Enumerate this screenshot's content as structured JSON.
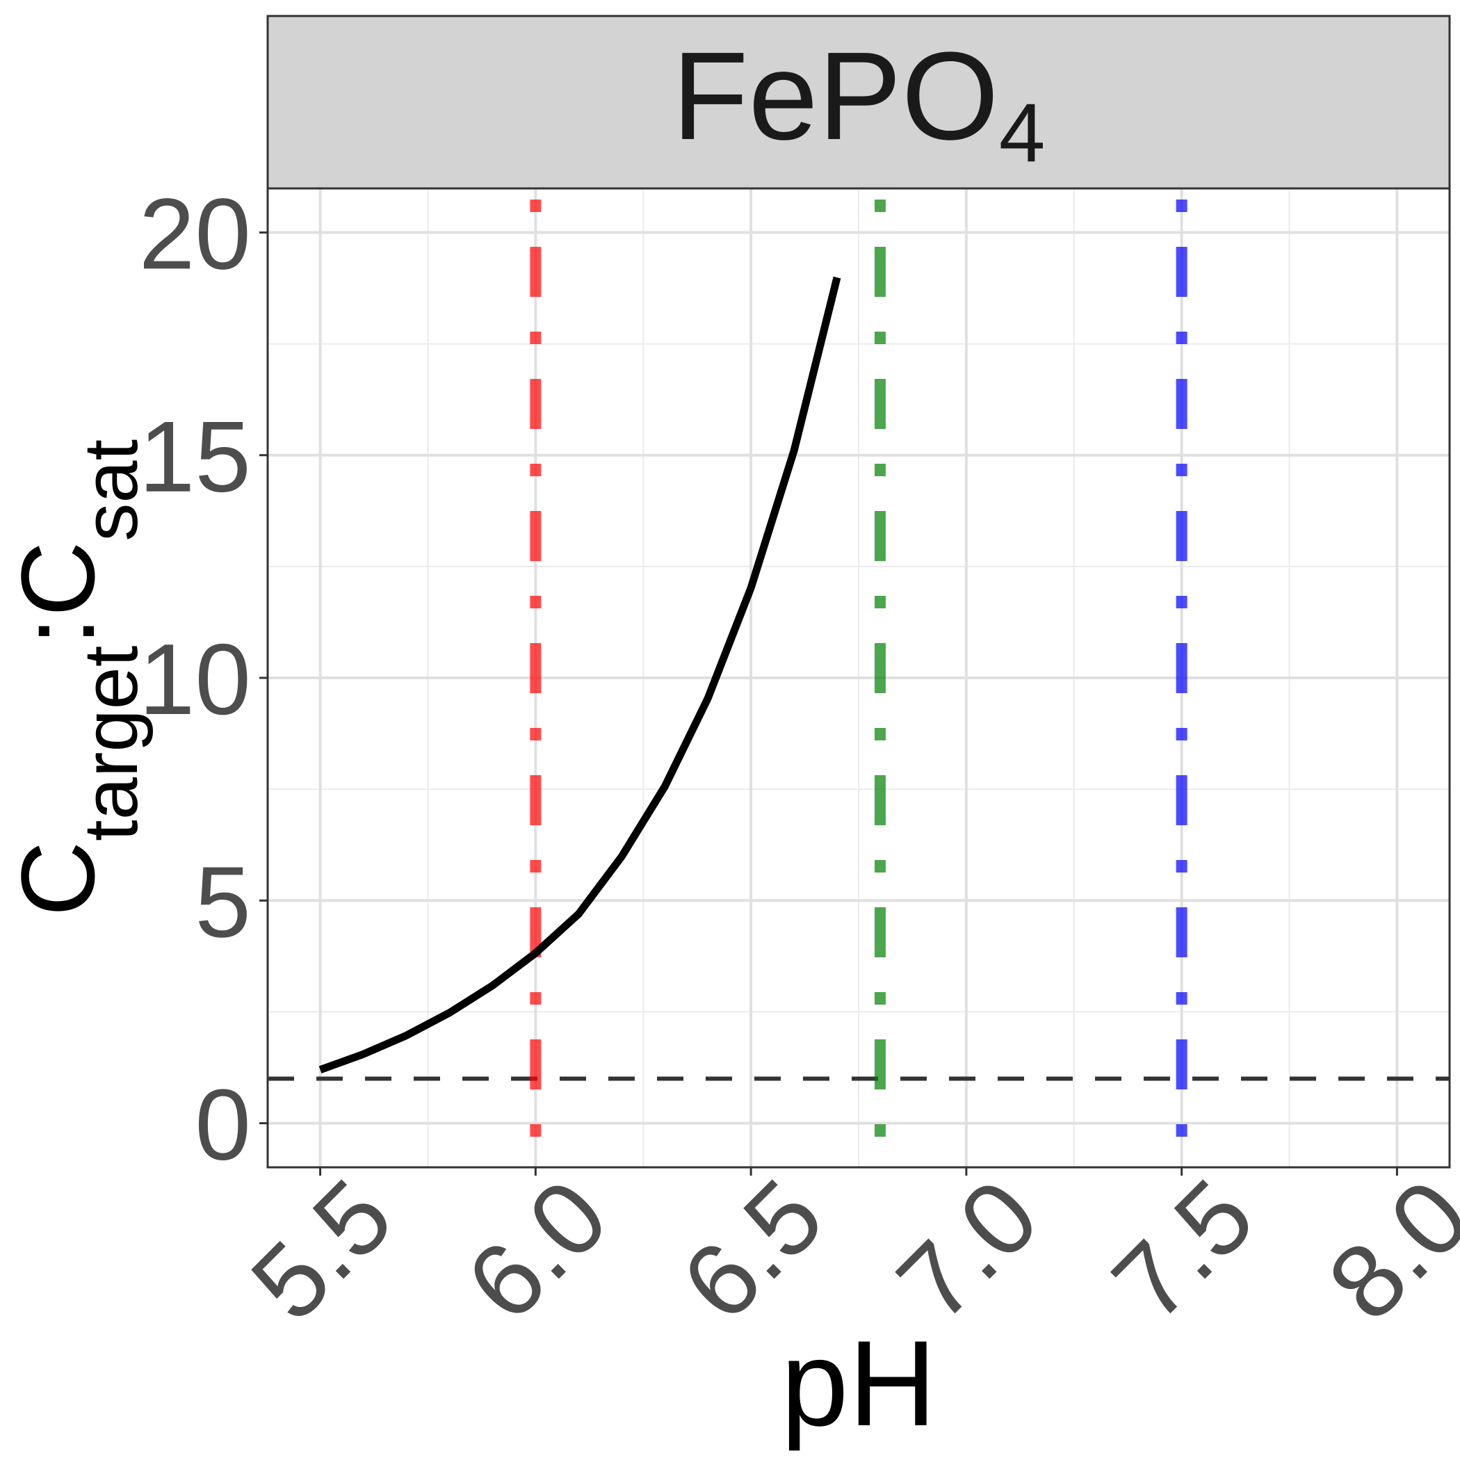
{
  "chart_data": {
    "type": "line",
    "title": [
      {
        "text": "FePO"
      },
      {
        "text": "4",
        "sub": true
      }
    ],
    "x_label": "pH",
    "y_label": [
      {
        "text": "C"
      },
      {
        "text": "target",
        "sub": true
      },
      {
        "text": ":"
      },
      {
        "text": "C"
      },
      {
        "text": "sat",
        "sub": true
      }
    ],
    "x": [
      5.5,
      5.6,
      5.7,
      5.8,
      5.9,
      6.0,
      6.1,
      6.2,
      6.3,
      6.4,
      6.5,
      6.6,
      6.7
    ],
    "series": [
      {
        "color": "#000000",
        "values": [
          1.2,
          1.55,
          1.97,
          2.48,
          3.09,
          3.82,
          4.7,
          5.99,
          7.56,
          9.54,
          12.02,
          15.1,
          18.99
        ]
      }
    ],
    "vlines": [
      {
        "x": 6.0,
        "color": "#ff0000"
      },
      {
        "x": 6.8,
        "color": "#008000"
      },
      {
        "x": 7.5,
        "color": "#0000ff"
      }
    ],
    "vline_opacity": 0.7,
    "hline": {
      "y": 1,
      "color": "#333333"
    },
    "xlim": [
      5.378,
      8.122
    ],
    "ylim": [
      -0.99,
      20.99
    ],
    "xticks": [
      5.5,
      {
        "value": 6,
        "label": "6.0"
      },
      6.5,
      {
        "value": 7,
        "label": "7.0"
      },
      7.5,
      {
        "value": 8,
        "label": "8.0"
      }
    ],
    "yticks": [
      0,
      5,
      10,
      15,
      20
    ],
    "xminor": [
      5.75,
      6.25,
      6.75,
      7.25,
      7.75
    ],
    "yminor": [
      2.5,
      7.5,
      12.5,
      17.5
    ],
    "grid": true
  }
}
